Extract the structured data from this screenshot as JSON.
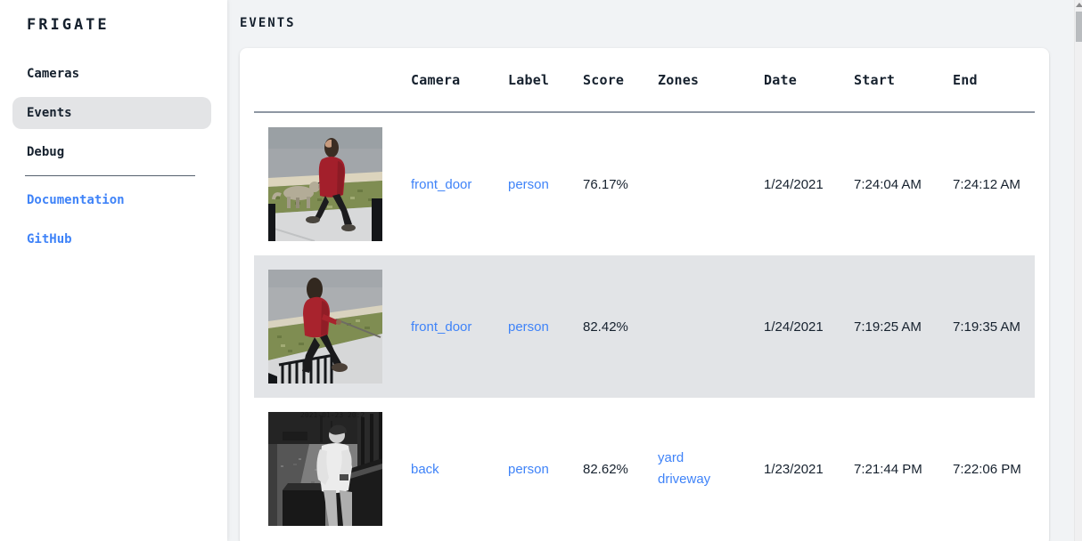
{
  "app": {
    "logo": "FRIGATE"
  },
  "sidebar": {
    "items": [
      {
        "label": "Cameras",
        "active": false
      },
      {
        "label": "Events",
        "active": true
      },
      {
        "label": "Debug",
        "active": false
      }
    ],
    "links": [
      {
        "label": "Documentation"
      },
      {
        "label": "GitHub"
      }
    ]
  },
  "page": {
    "title": "EVENTS"
  },
  "table": {
    "columns": [
      "",
      "Camera",
      "Label",
      "Score",
      "Zones",
      "Date",
      "Start",
      "End"
    ],
    "rows": [
      {
        "camera": "front_door",
        "label": "person",
        "score": "76.17%",
        "zones": [],
        "date": "1/24/2021",
        "start": "7:24:04 AM",
        "end": "7:24:12 AM",
        "highlighted": false,
        "thumb": "person-red-coat-walking-dog"
      },
      {
        "camera": "front_door",
        "label": "person",
        "score": "82.42%",
        "zones": [],
        "date": "1/24/2021",
        "start": "7:19:25 AM",
        "end": "7:19:35 AM",
        "highlighted": true,
        "thumb": "person-red-hoodie-leash"
      },
      {
        "camera": "back",
        "label": "person",
        "score": "82.62%",
        "zones": [
          "yard",
          "driveway"
        ],
        "date": "1/23/2021",
        "start": "7:21:44 PM",
        "end": "7:22:06 PM",
        "highlighted": false,
        "thumb": "person-infrared-night"
      }
    ]
  },
  "colors": {
    "accent_link": "#3f83f8",
    "dark_text": "#16212e",
    "row_highlight": "#e2e4e7",
    "main_background": "#f1f3f5",
    "card_background": "#ffffff"
  }
}
